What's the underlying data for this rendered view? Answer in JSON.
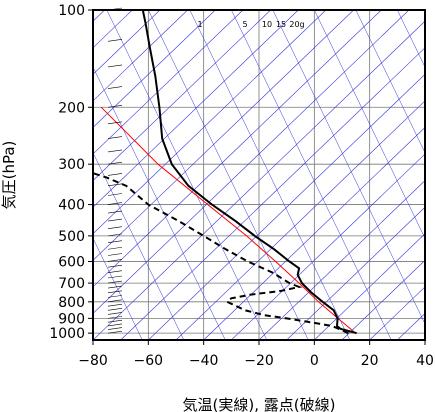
{
  "chart_data": {
    "type": "line",
    "subtype": "skew-T log-P thermodynamic diagram",
    "xlabel": "気温(実線), 露点(破線)",
    "ylabel": "気圧(hPa)",
    "x_ticks": [
      -80,
      -60,
      -40,
      -20,
      0,
      20,
      40
    ],
    "y_ticks": [
      100,
      200,
      300,
      400,
      500,
      600,
      700,
      800,
      900,
      1000
    ],
    "xlim": [
      -80,
      40
    ],
    "ylim": [
      1050,
      100
    ],
    "y_scale": "log",
    "grid": true,
    "mixing_ratio_labels": [
      "1",
      "5",
      "10",
      "15",
      "20g"
    ],
    "series": [
      {
        "style": "solid",
        "points": [
          [
            1000,
            15.3
          ],
          [
            970,
            9.5
          ],
          [
            950,
            8.2
          ],
          [
            900,
            8.4
          ],
          [
            850,
            7.0
          ],
          [
            800,
            3.0
          ],
          [
            750,
            -1.0
          ],
          [
            700,
            -4.5
          ],
          [
            660,
            -6.0
          ],
          [
            630,
            -5.5
          ],
          [
            600,
            -9.0
          ],
          [
            550,
            -14.5
          ],
          [
            500,
            -21.5
          ],
          [
            450,
            -28.5
          ],
          [
            400,
            -37.0
          ],
          [
            350,
            -45.5
          ],
          [
            300,
            -51.5
          ],
          [
            250,
            -55.0
          ],
          [
            200,
            -56.0
          ],
          [
            160,
            -57.5
          ],
          [
            130,
            -59.5
          ],
          [
            110,
            -61.0
          ],
          [
            100,
            -62.0
          ]
        ]
      },
      {
        "style": "dashed",
        "points": [
          [
            1000,
            12.3
          ],
          [
            950,
            6.5
          ],
          [
            920,
            -3.0
          ],
          [
            900,
            -10.0
          ],
          [
            880,
            -18.0
          ],
          [
            850,
            -25.0
          ],
          [
            800,
            -31.5
          ],
          [
            780,
            -30.0
          ],
          [
            760,
            -23.0
          ],
          [
            740,
            -12.0
          ],
          [
            720,
            -5.5
          ],
          [
            700,
            -9.0
          ],
          [
            650,
            -15.0
          ],
          [
            600,
            -24.0
          ],
          [
            550,
            -32.0
          ],
          [
            500,
            -40.0
          ],
          [
            450,
            -49.0
          ],
          [
            400,
            -60.0
          ],
          [
            350,
            -68.0
          ],
          [
            330,
            -75.0
          ],
          [
            320,
            -80.0
          ]
        ]
      }
    ],
    "reference_line": {
      "points": [
        [
          1000,
          15
        ],
        [
          900,
          8.5
        ],
        [
          800,
          1.5
        ],
        [
          700,
          -5.5
        ],
        [
          600,
          -14
        ],
        [
          500,
          -24.5
        ],
        [
          400,
          -38.5
        ],
        [
          300,
          -56.5
        ],
        [
          200,
          -77
        ]
      ]
    },
    "colors": {
      "temperature": "#000000",
      "dewpoint": "#000000",
      "reference_line": "#ff0000",
      "isotherms": "#3333dd",
      "grid": "#777777",
      "wind_barbs": "#000000"
    }
  }
}
